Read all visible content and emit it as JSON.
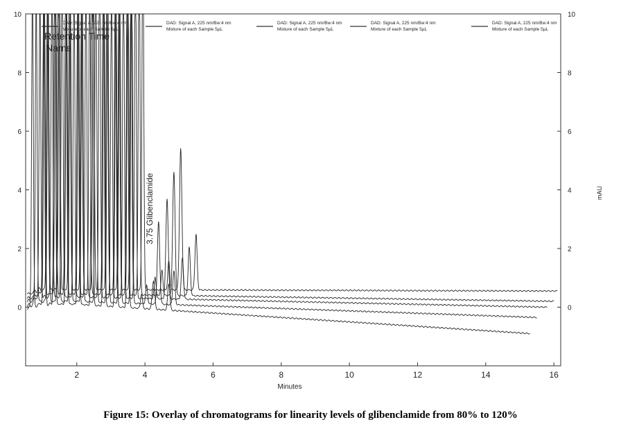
{
  "chart_data": {
    "type": "line",
    "title": "",
    "xlabel": "Minutes",
    "ylabel_right": "mAU",
    "xlim": [
      0.5,
      16.2
    ],
    "ylim": [
      -2,
      10
    ],
    "x_ticks": [
      2,
      4,
      6,
      8,
      10,
      12,
      14,
      16
    ],
    "y_ticks": [
      0,
      2,
      4,
      6,
      8,
      10
    ],
    "grid": false,
    "legend_position": "top",
    "legend_items": [
      {
        "label": "DAD: Signal A, 225 nm/Bw:4 nm",
        "sublabel": "Mixture of each Sample 5µL"
      },
      {
        "label": "DAD: Signal A, 225 nm/Bw:4 nm",
        "sublabel": "Mixture of each Sample 5µL"
      },
      {
        "label": "DAD: Signal A, 225 nm/Bw:4 nm",
        "sublabel": "Mixture of each Sample 5µL"
      },
      {
        "label": "DAD: Signal A, 225 nm/Bw:4 nm",
        "sublabel": "Mixture of each Sample 5µL"
      },
      {
        "label": "DAD: Signal A, 225 nm/Bw:4 nm",
        "sublabel": "Mixture of each Sample 5µL"
      }
    ],
    "annotations": {
      "retention_time_header": "Retention Time",
      "name_header": "Name",
      "peak_label": "3.75  Glibenclamide"
    },
    "series": [
      {
        "baseline_start": 0.1,
        "baseline_end": -0.9,
        "x_end": 15.3,
        "glib_peak_x": 4.25,
        "glib_peak_y": 0.9
      },
      {
        "baseline_start": 0.2,
        "baseline_end": -0.35,
        "x_end": 15.5,
        "glib_peak_x": 4.4,
        "glib_peak_y": 2.9
      },
      {
        "baseline_start": 0.35,
        "baseline_end": 0.0,
        "x_end": 15.8,
        "glib_peak_x": 4.65,
        "glib_peak_y": 3.7
      },
      {
        "baseline_start": 0.45,
        "baseline_end": 0.2,
        "x_end": 16.0,
        "glib_peak_x": 4.85,
        "glib_peak_y": 4.6
      },
      {
        "baseline_start": 0.6,
        "baseline_end": 0.55,
        "x_end": 16.1,
        "glib_peak_x": 5.05,
        "glib_peak_y": 5.4
      }
    ]
  },
  "caption": "Figure 15: Overlay of chromatograms for linearity levels of glibenclamide from 80% to 120%"
}
